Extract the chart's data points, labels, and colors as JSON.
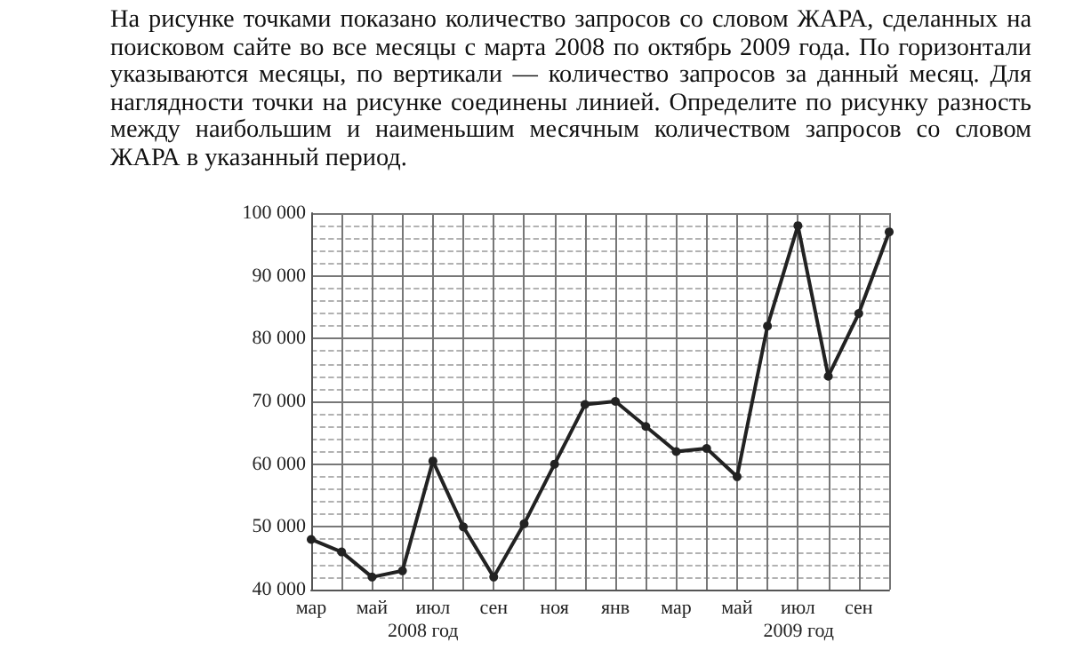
{
  "chart_data": {
    "type": "line",
    "title": "На рисунке точками показано количество запросов со словом ЖАРА, сделанных на поисковом сайте во все месяцы с марта 2008 по октябрь 2009 года. По горизонтали указываются месяцы, по вертикали — количество запросов за данный месяц. Для наглядности точки на рисунке соединены линией. Определите по рисунку разность между наибольшим и наименьшим месячным количеством запросов со словом ЖАРА в указанный период.",
    "categories": [
      "мар",
      null,
      "май",
      null,
      "июл",
      null,
      "сен",
      null,
      "ноя",
      null,
      "янв",
      null,
      "мар",
      null,
      "май",
      null,
      "июл",
      null,
      "сен",
      null
    ],
    "series": [
      {
        "color": "#222222",
        "values": [
          48000,
          46000,
          42000,
          43000,
          60500,
          50000,
          42000,
          50500,
          60000,
          69500,
          70000,
          66000,
          62000,
          62500,
          58000,
          82000,
          98000,
          74000,
          84000,
          97000
        ]
      }
    ],
    "ylim": [
      40000,
      100000
    ],
    "yticks": [
      {
        "value": 40000,
        "label": "40 000"
      },
      {
        "value": 50000,
        "label": "50 000"
      },
      {
        "value": 60000,
        "label": "60 000"
      },
      {
        "value": 70000,
        "label": "70 000"
      },
      {
        "value": 80000,
        "label": "80 000"
      },
      {
        "value": 90000,
        "label": "90 000"
      },
      {
        "value": 100000,
        "label": "100 000"
      }
    ],
    "annotations": [
      "2008 год",
      "2009 год"
    ],
    "grid": true,
    "marker": "circle",
    "line_style": "solid"
  }
}
